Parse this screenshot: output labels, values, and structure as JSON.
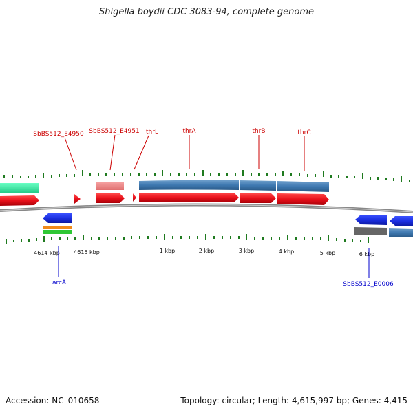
{
  "title": "Shigella boydii CDC 3083-94, complete genome",
  "footer": {
    "accession": "Accession: NC_010658",
    "summary": "Topology: circular; Length: 4,615,997 bp; Genes: 4,415"
  },
  "colors": {
    "forward_gene": "#e8101a",
    "forward_feature": "#3e78b0",
    "reverse_gene": "#1a2ee0",
    "reverse_feature": "#4f84b8",
    "highlight": "#f08a8a",
    "misc_green": "#2fe8a0",
    "tick": "#1f7a1f",
    "backbone": "#888888",
    "label_forward": "#cc0000",
    "label_reverse": "#0000cc",
    "scale_text": "#111111"
  },
  "scale_labels": [
    "4614 kbp",
    "4615 kbp",
    "1 kbp",
    "2 kbp",
    "3 kbp",
    "4 kbp",
    "5 kbp",
    "6 kbp"
  ],
  "gene_labels": {
    "forward": [
      "SbBS512_E4950",
      "SbBS512_E4951",
      "thrL",
      "thrA",
      "thrB",
      "thrC"
    ],
    "reverse": [
      "arcA",
      "SbBS512_E0006"
    ]
  }
}
